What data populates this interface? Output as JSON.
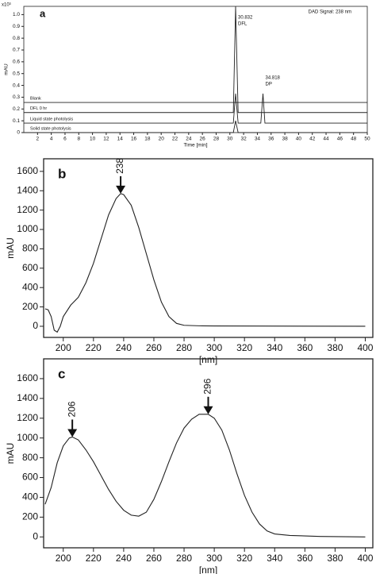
{
  "chart_data": [
    {
      "type": "line",
      "panel_label": "a",
      "y_multiplier": "x10³",
      "signal_label": "DAD Signal: 238 nm",
      "xlabel": "Time [min]",
      "ylabel": "mAU",
      "xlim": [
        0,
        50
      ],
      "ylim": [
        0,
        1.07
      ],
      "xticks": [
        2,
        4,
        6,
        8,
        10,
        12,
        14,
        16,
        18,
        20,
        22,
        24,
        26,
        28,
        30,
        32,
        34,
        36,
        38,
        40,
        42,
        44,
        46,
        48,
        50
      ],
      "yticks": [
        0,
        0.1,
        0.2,
        0.3,
        0.4,
        0.5,
        0.6,
        0.7,
        0.8,
        0.9,
        {
          "value": 1,
          "label": "1.0"
        }
      ],
      "series": [
        {
          "name": "Blank",
          "color": "#222222",
          "x": [
            0,
            50
          ],
          "values": [
            0.255,
            0.255
          ]
        },
        {
          "name": "DFL 0 hr",
          "color": "#222222",
          "x": [
            0,
            30.5,
            30.832,
            31.2,
            50
          ],
          "values": [
            0.17,
            0.17,
            1.07,
            0.17,
            0.17
          ]
        },
        {
          "name": "Liquid state photolysis",
          "color": "#222222",
          "x": [
            0,
            30.5,
            30.832,
            31.2,
            34.5,
            34.818,
            35.1,
            50
          ],
          "values": [
            0.08,
            0.08,
            0.33,
            0.08,
            0.08,
            0.33,
            0.08,
            0.08
          ]
        },
        {
          "name": "Solid state photolysis",
          "color": "#222222",
          "x": [
            0,
            30.5,
            30.832,
            31.2,
            50
          ],
          "values": [
            0,
            0,
            0.1,
            0,
            0
          ]
        }
      ],
      "peak_labels": [
        {
          "time": 30.832,
          "name": "DFL"
        },
        {
          "time": 34.818,
          "name": "DP"
        }
      ]
    },
    {
      "type": "line",
      "panel_label": "b",
      "xlabel": "[nm]",
      "ylabel": "mAU",
      "color": "#222222",
      "xlim": [
        187,
        405
      ],
      "ylim": [
        -115,
        1730
      ],
      "xticks": [
        200,
        220,
        240,
        260,
        280,
        300,
        320,
        340,
        360,
        380,
        400
      ],
      "yticks": [
        0,
        200,
        400,
        600,
        800,
        1000,
        1200,
        1400,
        1600
      ],
      "x": [
        188,
        190,
        192,
        194,
        196,
        198,
        200,
        205,
        210,
        215,
        220,
        225,
        230,
        235,
        238,
        240,
        245,
        250,
        255,
        260,
        265,
        270,
        275,
        280,
        290,
        300,
        400
      ],
      "values": [
        180,
        170,
        100,
        -40,
        -60,
        0,
        100,
        220,
        300,
        450,
        650,
        900,
        1150,
        1320,
        1370,
        1360,
        1250,
        1020,
        750,
        480,
        250,
        100,
        30,
        10,
        5,
        3,
        0
      ],
      "peak_labels": [
        238
      ]
    },
    {
      "type": "line",
      "panel_label": "c",
      "xlabel": "[nm]",
      "ylabel": "mAU",
      "color": "#222222",
      "xlim": [
        187,
        405
      ],
      "ylim": [
        -110,
        1800
      ],
      "xticks": [
        200,
        220,
        240,
        260,
        280,
        300,
        320,
        340,
        360,
        380,
        400
      ],
      "yticks": [
        0,
        200,
        400,
        600,
        800,
        1000,
        1200,
        1400,
        1600
      ],
      "x": [
        188,
        192,
        196,
        200,
        204,
        206,
        210,
        215,
        220,
        225,
        230,
        235,
        240,
        245,
        250,
        255,
        260,
        265,
        270,
        275,
        280,
        285,
        290,
        296,
        300,
        305,
        310,
        315,
        320,
        325,
        330,
        335,
        340,
        350,
        370,
        400
      ],
      "values": [
        330,
        500,
        750,
        920,
        1000,
        1010,
        980,
        880,
        760,
        620,
        480,
        360,
        270,
        220,
        210,
        250,
        380,
        560,
        760,
        950,
        1100,
        1190,
        1240,
        1240,
        1200,
        1080,
        880,
        640,
        420,
        250,
        130,
        60,
        30,
        15,
        5,
        0
      ],
      "peak_labels": [
        206,
        296
      ]
    }
  ]
}
